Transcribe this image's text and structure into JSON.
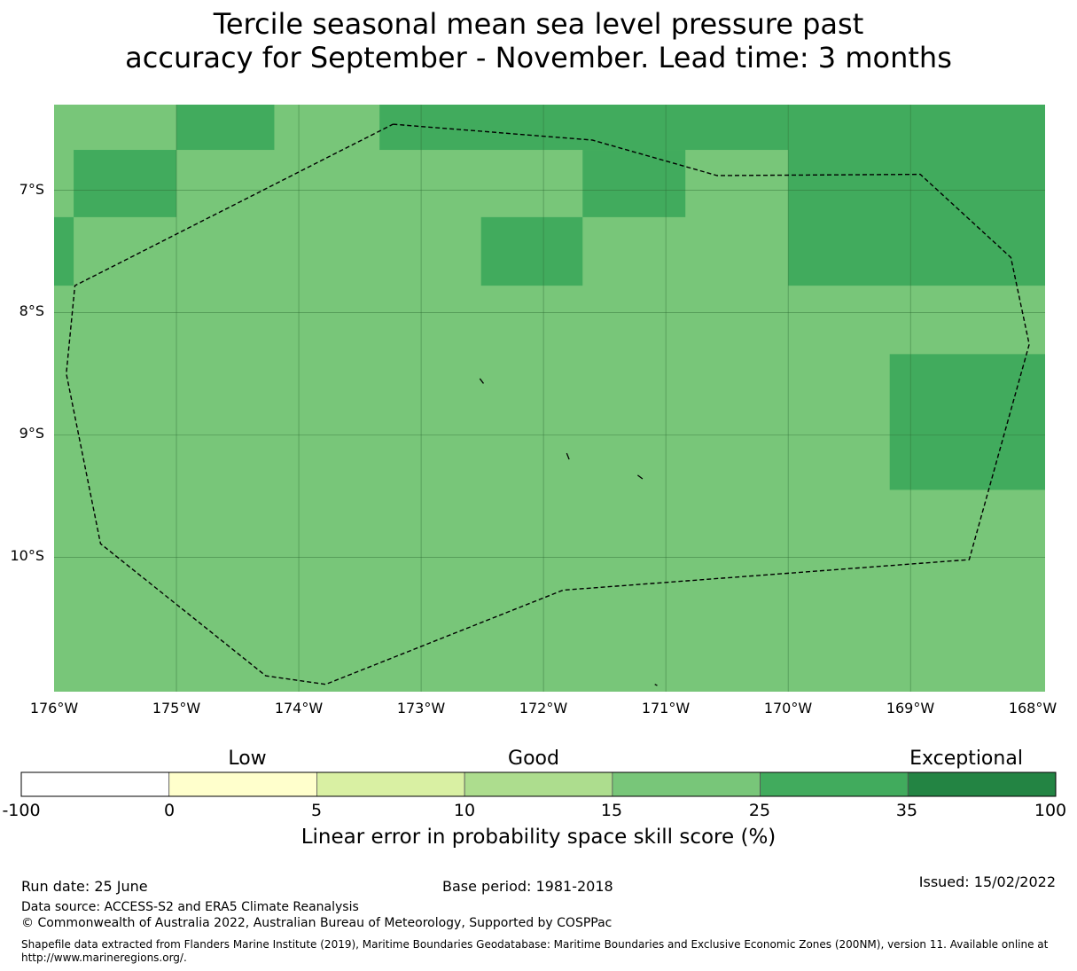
{
  "title": {
    "line1": "Tercile seasonal mean sea level pressure past",
    "line2": "accuracy for September - November. Lead time: 3 months"
  },
  "map": {
    "lat_labels": [
      "7°S",
      "8°S",
      "9°S",
      "10°S"
    ],
    "lon_labels": [
      "176°W",
      "175°W",
      "174°W",
      "173°W",
      "172°W",
      "171°W",
      "170°W",
      "169°W",
      "168°W"
    ],
    "extent": {
      "lon_min": -176.0,
      "lon_max": -167.9,
      "lat_max": -6.3,
      "lat_min": -11.1
    },
    "base_color": "#78c679",
    "high_color": "#41ab5d",
    "high_cells": [
      {
        "lon": [
          -175.0,
          -174.2
        ],
        "lat": [
          -6.3,
          -6.67
        ]
      },
      {
        "lon": [
          -175.84,
          -175.0
        ],
        "lat": [
          -6.67,
          -7.22
        ]
      },
      {
        "lon": [
          -176.0,
          -175.84
        ],
        "lat": [
          -7.22,
          -7.78
        ]
      },
      {
        "lon": [
          -173.34,
          -170.0
        ],
        "lat": [
          -6.3,
          -6.67
        ]
      },
      {
        "lon": [
          -171.68,
          -170.84
        ],
        "lat": [
          -6.67,
          -7.22
        ]
      },
      {
        "lon": [
          -172.51,
          -171.68
        ],
        "lat": [
          -7.22,
          -7.78
        ]
      },
      {
        "lon": [
          -170.0,
          -167.9
        ],
        "lat": [
          -6.3,
          -7.78
        ]
      },
      {
        "lon": [
          -169.17,
          -167.9
        ],
        "lat": [
          -8.34,
          -9.45
        ]
      }
    ],
    "boundary": [
      [
        -173.23,
        -6.46
      ],
      [
        -171.6,
        -6.59
      ],
      [
        -170.58,
        -6.88
      ],
      [
        -168.92,
        -6.87
      ],
      [
        -168.18,
        -7.55
      ],
      [
        -168.03,
        -8.26
      ],
      [
        -168.52,
        -10.02
      ],
      [
        -171.84,
        -10.27
      ],
      [
        -173.78,
        -11.04
      ],
      [
        -174.27,
        -10.97
      ],
      [
        -175.62,
        -9.89
      ],
      [
        -175.9,
        -8.5
      ],
      [
        -175.83,
        -7.78
      ],
      [
        -173.23,
        -6.46
      ]
    ],
    "islands": [
      [
        [
          -172.52,
          -8.54
        ],
        [
          -172.49,
          -8.58
        ]
      ],
      [
        [
          -171.81,
          -9.15
        ],
        [
          -171.79,
          -9.2
        ]
      ],
      [
        [
          -171.23,
          -9.33
        ],
        [
          -171.19,
          -9.36
        ]
      ],
      [
        [
          -171.09,
          -11.04
        ],
        [
          -171.07,
          -11.05
        ]
      ]
    ]
  },
  "colorbar": {
    "category_labels": [
      "Low",
      "Good",
      "Exceptional"
    ],
    "bins": [
      {
        "from": -100,
        "to": 0,
        "color": "#ffffff"
      },
      {
        "from": 0,
        "to": 5,
        "color": "#ffffcc"
      },
      {
        "from": 5,
        "to": 10,
        "color": "#d9f0a3"
      },
      {
        "from": 10,
        "to": 15,
        "color": "#addd8e"
      },
      {
        "from": 15,
        "to": 25,
        "color": "#78c679"
      },
      {
        "from": 25,
        "to": 35,
        "color": "#41ab5d"
      },
      {
        "from": 35,
        "to": 100,
        "color": "#238443"
      }
    ],
    "tick_labels": [
      "-100",
      "0",
      "5",
      "10",
      "15",
      "25",
      "35",
      "100"
    ],
    "label": "Linear error in probability space skill score (%)"
  },
  "footer": {
    "run_date": "Run date: 25 June",
    "base_period": "Base period: 1981-2018",
    "issued": "Issued: 15/02/2022",
    "data_source": "Data source: ACCESS-S2 and ERA5 Climate Reanalysis",
    "copyright": "© Commonwealth of Australia 2022, Australian Bureau of Meteorology, Supported by COSPPac",
    "shapefile_line1": "Shapefile data extracted from Flanders Marine Institute (2019), Maritime Boundaries Geodatabase: Maritime Boundaries and Exclusive Economic Zones (200NM), version 11. Available online at",
    "shapefile_line2": "http://www.marineregions.org/."
  }
}
